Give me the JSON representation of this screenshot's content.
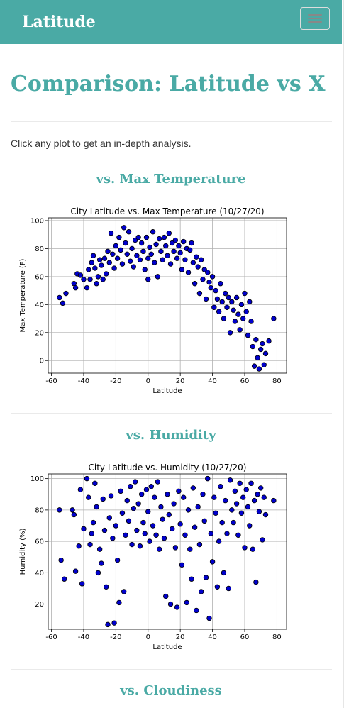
{
  "navbar": {
    "brand": "Latitude",
    "menu_icon": "hamburger-icon"
  },
  "page": {
    "title": "Comparison: Latitude vs X",
    "intro": "Click any plot to get an in-depth analysis."
  },
  "sections": [
    {
      "heading": "vs. Max Temperature"
    },
    {
      "heading": "vs. Humidity"
    },
    {
      "heading": "vs. Cloudiness"
    }
  ],
  "colors": {
    "brand": "#4aaaa5",
    "marker_fill": "#0000cd",
    "marker_edge": "#000000"
  },
  "chart_data": [
    {
      "type": "scatter",
      "title": "City Latitude vs. Max Temperature (10/27/20)",
      "xlabel": "Latitude",
      "ylabel": "Max Temperature (F)",
      "xlim": [
        -62,
        86
      ],
      "ylim": [
        -9,
        102
      ],
      "xticks": [
        -60,
        -40,
        -20,
        0,
        20,
        40,
        60,
        80
      ],
      "yticks": [
        0,
        20,
        40,
        60,
        80,
        100
      ],
      "grid": true,
      "points": [
        [
          -55,
          45
        ],
        [
          -53,
          41
        ],
        [
          -51,
          48
        ],
        [
          -46,
          55
        ],
        [
          -45,
          52
        ],
        [
          -44,
          62
        ],
        [
          -42,
          61
        ],
        [
          -40,
          58
        ],
        [
          -38,
          52
        ],
        [
          -37,
          65
        ],
        [
          -36,
          58
        ],
        [
          -35,
          70
        ],
        [
          -34,
          75
        ],
        [
          -33,
          66
        ],
        [
          -32,
          55
        ],
        [
          -31,
          60
        ],
        [
          -30,
          72
        ],
        [
          -29,
          68
        ],
        [
          -28,
          58
        ],
        [
          -27,
          73
        ],
        [
          -26,
          62
        ],
        [
          -25,
          78
        ],
        [
          -24,
          70
        ],
        [
          -23,
          91
        ],
        [
          -22,
          76
        ],
        [
          -21,
          66
        ],
        [
          -20,
          82
        ],
        [
          -19,
          73
        ],
        [
          -18,
          88
        ],
        [
          -17,
          79
        ],
        [
          -16,
          69
        ],
        [
          -15,
          95
        ],
        [
          -14,
          84
        ],
        [
          -13,
          76
        ],
        [
          -12,
          92
        ],
        [
          -11,
          71
        ],
        [
          -10,
          80
        ],
        [
          -9,
          67
        ],
        [
          -8,
          86
        ],
        [
          -7,
          75
        ],
        [
          -6,
          88
        ],
        [
          -5,
          72
        ],
        [
          -4,
          84
        ],
        [
          -3,
          78
        ],
        [
          -2,
          65
        ],
        [
          -1,
          88
        ],
        [
          0,
          73
        ],
        [
          0,
          58
        ],
        [
          1,
          81
        ],
        [
          2,
          76
        ],
        [
          3,
          92
        ],
        [
          4,
          70
        ],
        [
          5,
          83
        ],
        [
          6,
          60
        ],
        [
          7,
          87
        ],
        [
          8,
          78
        ],
        [
          9,
          72
        ],
        [
          10,
          88
        ],
        [
          11,
          82
        ],
        [
          12,
          75
        ],
        [
          13,
          91
        ],
        [
          14,
          69
        ],
        [
          15,
          84
        ],
        [
          16,
          78
        ],
        [
          17,
          86
        ],
        [
          18,
          73
        ],
        [
          19,
          82
        ],
        [
          20,
          77
        ],
        [
          21,
          65
        ],
        [
          22,
          85
        ],
        [
          23,
          72
        ],
        [
          24,
          80
        ],
        [
          25,
          63
        ],
        [
          26,
          79
        ],
        [
          27,
          84
        ],
        [
          28,
          70
        ],
        [
          29,
          55
        ],
        [
          30,
          74
        ],
        [
          31,
          67
        ],
        [
          32,
          48
        ],
        [
          33,
          72
        ],
        [
          34,
          58
        ],
        [
          35,
          65
        ],
        [
          36,
          44
        ],
        [
          37,
          63
        ],
        [
          38,
          56
        ],
        [
          39,
          52
        ],
        [
          40,
          60
        ],
        [
          41,
          38
        ],
        [
          42,
          50
        ],
        [
          43,
          44
        ],
        [
          44,
          35
        ],
        [
          45,
          55
        ],
        [
          46,
          42
        ],
        [
          47,
          30
        ],
        [
          48,
          48
        ],
        [
          49,
          38
        ],
        [
          50,
          45
        ],
        [
          51,
          20
        ],
        [
          52,
          42
        ],
        [
          53,
          36
        ],
        [
          54,
          28
        ],
        [
          55,
          45
        ],
        [
          56,
          33
        ],
        [
          57,
          22
        ],
        [
          58,
          40
        ],
        [
          59,
          30
        ],
        [
          60,
          48
        ],
        [
          61,
          35
        ],
        [
          62,
          18
        ],
        [
          63,
          42
        ],
        [
          64,
          28
        ],
        [
          65,
          10
        ],
        [
          66,
          -4
        ],
        [
          67,
          15
        ],
        [
          68,
          2
        ],
        [
          69,
          -6
        ],
        [
          70,
          8
        ],
        [
          71,
          12
        ],
        [
          72,
          -3
        ],
        [
          73,
          5
        ],
        [
          75,
          14
        ],
        [
          78,
          30
        ]
      ]
    },
    {
      "type": "scatter",
      "title": "City Latitude vs. Humidity (10/27/20)",
      "xlabel": "Latitude",
      "ylabel": "Humidity (%)",
      "xlim": [
        -62,
        86
      ],
      "ylim": [
        4,
        103
      ],
      "xticks": [
        -60,
        -40,
        -20,
        0,
        20,
        40,
        60,
        80
      ],
      "yticks": [
        20,
        40,
        60,
        80,
        100
      ],
      "grid": true,
      "points": [
        [
          -55,
          80
        ],
        [
          -54,
          48
        ],
        [
          -52,
          36
        ],
        [
          -47,
          80
        ],
        [
          -46,
          77
        ],
        [
          -45,
          41
        ],
        [
          -43,
          57
        ],
        [
          -42,
          93
        ],
        [
          -41,
          33
        ],
        [
          -40,
          68
        ],
        [
          -38,
          100
        ],
        [
          -37,
          88
        ],
        [
          -36,
          58
        ],
        [
          -35,
          65
        ],
        [
          -34,
          72
        ],
        [
          -33,
          97
        ],
        [
          -32,
          82
        ],
        [
          -31,
          40
        ],
        [
          -30,
          55
        ],
        [
          -29,
          46
        ],
        [
          -28,
          87
        ],
        [
          -27,
          67
        ],
        [
          -26,
          31
        ],
        [
          -25,
          7
        ],
        [
          -24,
          75
        ],
        [
          -23,
          89
        ],
        [
          -22,
          62
        ],
        [
          -21,
          8
        ],
        [
          -20,
          70
        ],
        [
          -19,
          48
        ],
        [
          -18,
          21
        ],
        [
          -17,
          92
        ],
        [
          -16,
          78
        ],
        [
          -15,
          28
        ],
        [
          -14,
          64
        ],
        [
          -13,
          86
        ],
        [
          -12,
          73
        ],
        [
          -11,
          95
        ],
        [
          -10,
          58
        ],
        [
          -9,
          81
        ],
        [
          -8,
          98
        ],
        [
          -7,
          67
        ],
        [
          -6,
          84
        ],
        [
          -5,
          57
        ],
        [
          -4,
          90
        ],
        [
          -3,
          72
        ],
        [
          -2,
          65
        ],
        [
          -1,
          93
        ],
        [
          0,
          79
        ],
        [
          1,
          60
        ],
        [
          2,
          95
        ],
        [
          3,
          70
        ],
        [
          4,
          88
        ],
        [
          5,
          64
        ],
        [
          6,
          98
        ],
        [
          7,
          55
        ],
        [
          8,
          82
        ],
        [
          9,
          74
        ],
        [
          10,
          62
        ],
        [
          11,
          25
        ],
        [
          12,
          90
        ],
        [
          13,
          77
        ],
        [
          14,
          20
        ],
        [
          15,
          68
        ],
        [
          16,
          84
        ],
        [
          17,
          56
        ],
        [
          18,
          18
        ],
        [
          19,
          92
        ],
        [
          20,
          71
        ],
        [
          21,
          45
        ],
        [
          22,
          88
        ],
        [
          23,
          64
        ],
        [
          24,
          21
        ],
        [
          25,
          80
        ],
        [
          26,
          55
        ],
        [
          27,
          36
        ],
        [
          28,
          94
        ],
        [
          29,
          69
        ],
        [
          30,
          16
        ],
        [
          31,
          82
        ],
        [
          32,
          58
        ],
        [
          33,
          28
        ],
        [
          34,
          90
        ],
        [
          35,
          73
        ],
        [
          36,
          37
        ],
        [
          37,
          100
        ],
        [
          38,
          11
        ],
        [
          39,
          65
        ],
        [
          40,
          47
        ],
        [
          41,
          88
        ],
        [
          42,
          78
        ],
        [
          43,
          31
        ],
        [
          44,
          60
        ],
        [
          45,
          95
        ],
        [
          46,
          72
        ],
        [
          47,
          40
        ],
        [
          48,
          86
        ],
        [
          49,
          65
        ],
        [
          50,
          30
        ],
        [
          51,
          99
        ],
        [
          52,
          80
        ],
        [
          53,
          72
        ],
        [
          54,
          92
        ],
        [
          55,
          84
        ],
        [
          56,
          64
        ],
        [
          57,
          97
        ],
        [
          58,
          78
        ],
        [
          59,
          88
        ],
        [
          60,
          56
        ],
        [
          61,
          93
        ],
        [
          62,
          82
        ],
        [
          63,
          70
        ],
        [
          64,
          97
        ],
        [
          65,
          55
        ],
        [
          66,
          86
        ],
        [
          67,
          34
        ],
        [
          68,
          90
        ],
        [
          69,
          79
        ],
        [
          70,
          94
        ],
        [
          71,
          61
        ],
        [
          72,
          88
        ],
        [
          73,
          77
        ],
        [
          78,
          86
        ]
      ]
    }
  ]
}
